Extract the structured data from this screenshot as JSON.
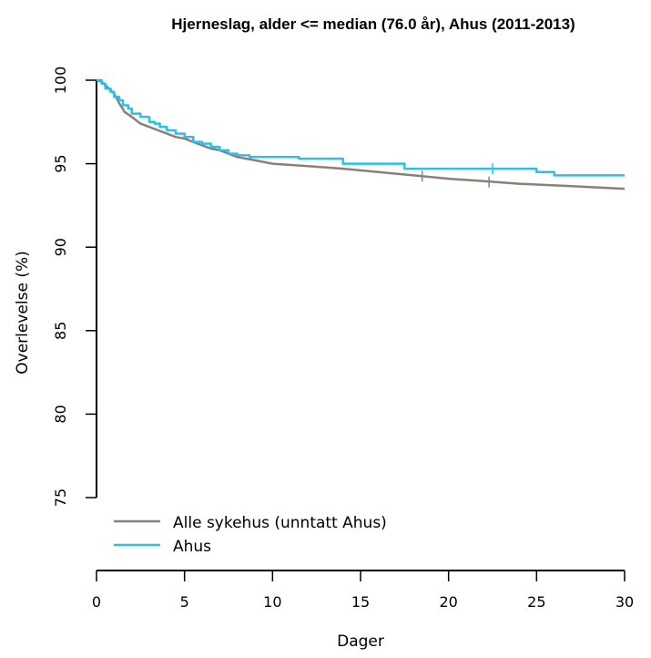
{
  "chart_data": {
    "type": "line",
    "title": "Hjerneslag, alder <= median (76.0 år), Ahus (2011-2013)",
    "xlabel": "Dager",
    "ylabel": "Overlevelse (%)",
    "xlim": [
      0,
      30
    ],
    "ylim": [
      75,
      100
    ],
    "xticks": [
      0,
      5,
      10,
      15,
      20,
      25,
      30
    ],
    "yticks": [
      75,
      80,
      85,
      90,
      95,
      100
    ],
    "grid": false,
    "legend_position": "bottom-left",
    "series": [
      {
        "name": "Alle sykehus (unntatt Ahus)",
        "color": "#8c7f78",
        "step": false,
        "x": [
          0,
          0.3,
          0.6,
          1.0,
          1.3,
          1.6,
          2.0,
          2.5,
          3.0,
          3.5,
          4.0,
          4.5,
          5.0,
          5.5,
          6.0,
          6.5,
          7.0,
          7.5,
          8.0,
          9.0,
          10.0,
          12.0,
          14.0,
          16.0,
          18.0,
          20.0,
          22.0,
          24.0,
          26.0,
          28.0,
          30.0
        ],
        "y": [
          100,
          99.9,
          99.6,
          99.2,
          98.6,
          98.1,
          97.8,
          97.4,
          97.2,
          97.0,
          96.8,
          96.6,
          96.5,
          96.3,
          96.1,
          95.9,
          95.8,
          95.6,
          95.4,
          95.2,
          95.0,
          94.85,
          94.7,
          94.5,
          94.3,
          94.1,
          93.95,
          93.8,
          93.7,
          93.6,
          93.5
        ],
        "censor_x": [
          18.5,
          22.3
        ],
        "censor_y": [
          94.25,
          93.9
        ]
      },
      {
        "name": "Ahus",
        "color": "#29c0ec",
        "step": true,
        "x": [
          0,
          0.3,
          0.5,
          0.8,
          1.0,
          1.3,
          1.5,
          1.8,
          2.0,
          2.5,
          3.0,
          3.3,
          3.6,
          4.0,
          4.5,
          5.0,
          5.5,
          6.0,
          6.5,
          7.0,
          7.5,
          8.0,
          8.7,
          11.5,
          14.0,
          17.5,
          25.0,
          26.0,
          30.0
        ],
        "y": [
          100,
          99.8,
          99.5,
          99.3,
          99.0,
          98.8,
          98.5,
          98.3,
          98.0,
          97.8,
          97.5,
          97.4,
          97.2,
          97.0,
          96.8,
          96.6,
          96.3,
          96.2,
          96.0,
          95.8,
          95.6,
          95.5,
          95.4,
          95.3,
          95.0,
          94.7,
          94.5,
          94.3,
          94.3
        ],
        "censor_x": [
          22.5
        ],
        "censor_y": [
          94.7
        ]
      }
    ]
  }
}
